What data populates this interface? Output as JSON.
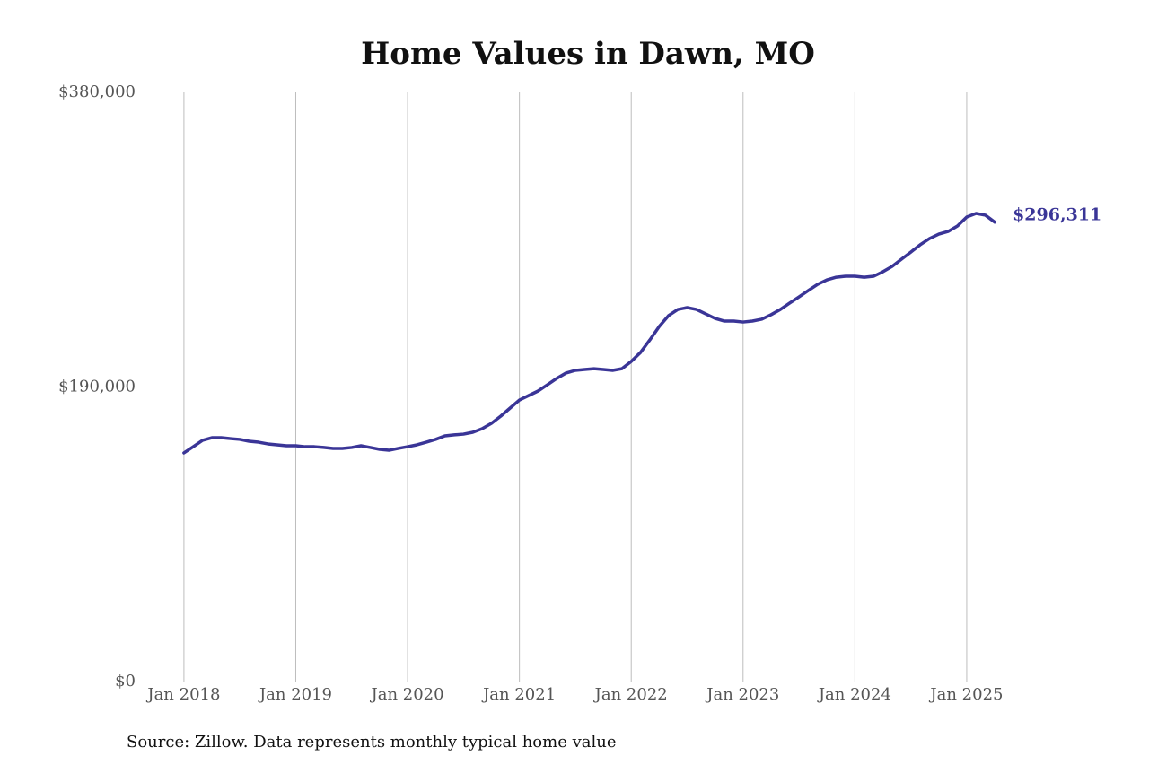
{
  "chart_data": {
    "type": "line",
    "title": "Home Values in Dawn, MO",
    "source": "Source: Zillow. Data represents monthly typical home value",
    "color": "#3a3597",
    "x": [
      "2018-01",
      "2018-02",
      "2018-03",
      "2018-04",
      "2018-05",
      "2018-06",
      "2018-07",
      "2018-08",
      "2018-09",
      "2018-10",
      "2018-11",
      "2018-12",
      "2019-01",
      "2019-02",
      "2019-03",
      "2019-04",
      "2019-05",
      "2019-06",
      "2019-07",
      "2019-08",
      "2019-09",
      "2019-10",
      "2019-11",
      "2019-12",
      "2020-01",
      "2020-02",
      "2020-03",
      "2020-04",
      "2020-05",
      "2020-06",
      "2020-07",
      "2020-08",
      "2020-09",
      "2020-10",
      "2020-11",
      "2020-12",
      "2021-01",
      "2021-02",
      "2021-03",
      "2021-04",
      "2021-05",
      "2021-06",
      "2021-07",
      "2021-08",
      "2021-09",
      "2021-10",
      "2021-11",
      "2021-12",
      "2022-01",
      "2022-02",
      "2022-03",
      "2022-04",
      "2022-05",
      "2022-06",
      "2022-07",
      "2022-08",
      "2022-09",
      "2022-10",
      "2022-11",
      "2022-12",
      "2023-01",
      "2023-02",
      "2023-03",
      "2023-04",
      "2023-05",
      "2023-06",
      "2023-07",
      "2023-08",
      "2023-09",
      "2023-10",
      "2023-11",
      "2023-12",
      "2024-01",
      "2024-02",
      "2024-03",
      "2024-04",
      "2024-05",
      "2024-06",
      "2024-07",
      "2024-08",
      "2024-09",
      "2024-10",
      "2024-11",
      "2024-12",
      "2025-01",
      "2025-02",
      "2025-03",
      "2025-04"
    ],
    "values": [
      147500,
      151500,
      155600,
      157300,
      157300,
      156700,
      156200,
      155000,
      154400,
      153300,
      152700,
      152100,
      152100,
      151500,
      151500,
      151000,
      150400,
      150400,
      151000,
      152100,
      151000,
      149800,
      149200,
      150400,
      151500,
      152700,
      154400,
      156200,
      158500,
      159100,
      159600,
      160800,
      163100,
      166600,
      171200,
      176400,
      181600,
      184500,
      187400,
      191400,
      195500,
      199000,
      200700,
      201300,
      201800,
      201300,
      200700,
      201800,
      206500,
      212300,
      220400,
      229000,
      236000,
      240000,
      241200,
      240000,
      237100,
      234200,
      232500,
      232500,
      231900,
      232500,
      233700,
      236600,
      240000,
      244100,
      248100,
      252200,
      256200,
      259100,
      260800,
      261400,
      261400,
      260800,
      261400,
      264300,
      267800,
      272400,
      277000,
      281700,
      285700,
      288600,
      290300,
      293800,
      299600,
      301900,
      300800,
      296311
    ],
    "value_labels": [
      null,
      null,
      null,
      null,
      null,
      null,
      null,
      null,
      null,
      null,
      null,
      null,
      null,
      null,
      null,
      null,
      null,
      null,
      null,
      null,
      null,
      null,
      null,
      null,
      null,
      null,
      null,
      null,
      null,
      null,
      null,
      null,
      null,
      null,
      null,
      null,
      null,
      null,
      null,
      null,
      null,
      null,
      null,
      null,
      null,
      null,
      null,
      null,
      null,
      null,
      null,
      null,
      null,
      null,
      null,
      null,
      null,
      null,
      null,
      null,
      null,
      null,
      null,
      null,
      null,
      null,
      null,
      null,
      null,
      null,
      null,
      null,
      null,
      null,
      null,
      null,
      null,
      null,
      null,
      null,
      null,
      null,
      null,
      null,
      null,
      null,
      null,
      "$296,311"
    ],
    "xlim": [
      "2017-08",
      "2025-09"
    ],
    "xticks": [
      {
        "value": "2018-01",
        "label": "Jan 2018"
      },
      {
        "value": "2019-01",
        "label": "Jan 2019"
      },
      {
        "value": "2020-01",
        "label": "Jan 2020"
      },
      {
        "value": "2021-01",
        "label": "Jan 2021"
      },
      {
        "value": "2022-01",
        "label": "Jan 2022"
      },
      {
        "value": "2023-01",
        "label": "Jan 2023"
      },
      {
        "value": "2024-01",
        "label": "Jan 2024"
      },
      {
        "value": "2025-01",
        "label": "Jan 2025"
      }
    ],
    "ylim": [
      0,
      380000
    ],
    "yticks": [
      {
        "value": 0,
        "label": "$0"
      },
      {
        "value": 190000,
        "label": "$190,000"
      },
      {
        "value": 380000,
        "label": "$380,000"
      }
    ],
    "grid": "x"
  }
}
